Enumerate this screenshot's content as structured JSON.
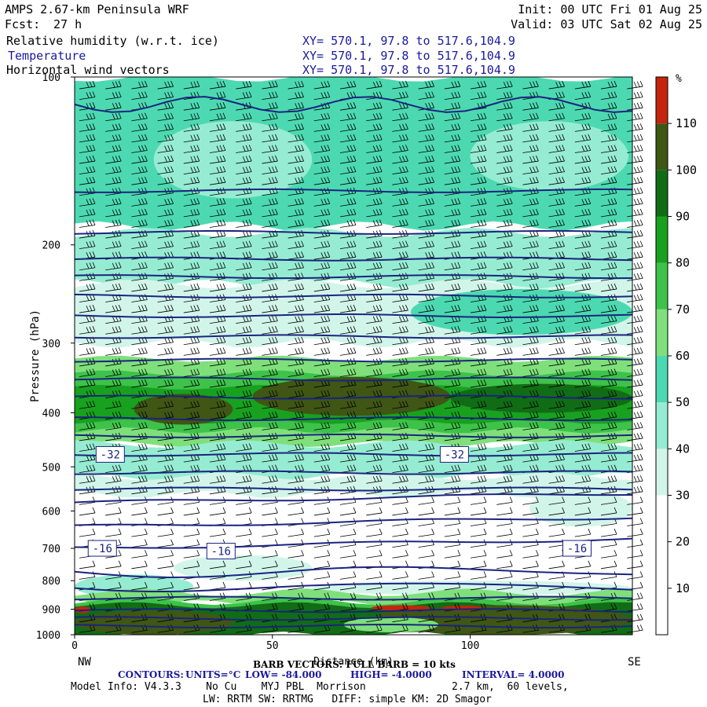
{
  "header": {
    "title": "AMPS 2.67-km Peninsula WRF",
    "fcst_label": "Fcst:",
    "fcst_value": "27 h",
    "init": "Init: 00 UTC Fri 01 Aug 25",
    "valid": "Valid: 03 UTC Sat 02 Aug 25",
    "fields": [
      {
        "name": "Relative humidity (w.r.t. ice)",
        "xy": "XY= 570.1, 97.8 to 517.6,104.9",
        "color": "#000000"
      },
      {
        "name": "Temperature",
        "xy": "XY= 570.1, 97.8 to 517.6,104.9",
        "color": "#1a1a9c"
      },
      {
        "name": "Horizontal wind vectors",
        "xy": "XY= 570.1, 97.8 to 517.6,104.9",
        "color": "#000000"
      }
    ]
  },
  "chart_data": {
    "type": "heatmap",
    "ylabel": "Pressure (hPa)",
    "xlabel": "Distance (km)",
    "x_ticks": [
      0,
      50,
      100
    ],
    "x_range": [
      0,
      141
    ],
    "y_ticks": [
      100,
      200,
      300,
      400,
      500,
      600,
      700,
      800,
      900,
      1000
    ],
    "y_range": [
      100,
      1000
    ],
    "y_log": true,
    "left_end_label": "NW",
    "right_end_label": "SE",
    "colorbar": {
      "unit": "%",
      "levels": [
        10,
        20,
        30,
        40,
        50,
        60,
        70,
        80,
        90,
        100,
        110
      ],
      "colors": [
        "#ffffff",
        "#ffffff",
        "#ffffff",
        "#d2f5ea",
        "#96ecd2",
        "#4cd9b1",
        "#7fe07b",
        "#3ec24a",
        "#18a11f",
        "#116c16",
        "#3f5615",
        "#c4250c"
      ]
    },
    "temperature_contours": {
      "units": "°C",
      "low": -84.0,
      "high": -4.0,
      "interval": 4.0,
      "labels": [
        {
          "text": "-32",
          "x": 9,
          "p": 475
        },
        {
          "text": "-32",
          "x": 96,
          "p": 475
        },
        {
          "text": "-16",
          "x": 7,
          "p": 700
        },
        {
          "text": "-16",
          "x": 37,
          "p": 708
        },
        {
          "text": "-16",
          "x": 127,
          "p": 700
        }
      ]
    }
  },
  "footer": {
    "barb_legend": "BARB VECTORS: FULL BARB = 10 kts",
    "contours_label": "CONTOURS:",
    "contours_units": "UNITS=°C",
    "contours_low": "LOW= -84.000",
    "contours_high": "HIGH= -4.0000",
    "contours_interval": "INTERVAL= 4.0000",
    "model_info": "Model Info: V4.3.3    No Cu    MYJ PBL  Morrison",
    "model_info2": "2.7 km,  60 levels,",
    "model_info3": "LW: RRTM SW: RRTMG   DIFF: simple KM: 2D Smagor"
  }
}
